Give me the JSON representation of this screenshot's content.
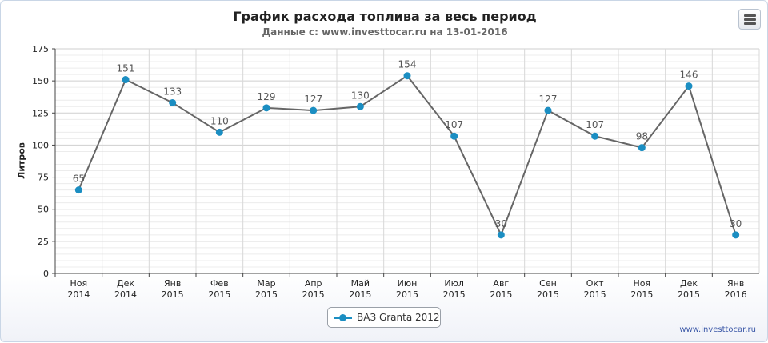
{
  "chart_data": {
    "type": "line",
    "title": "График расхода топлива за весь период",
    "subtitle": "Данные с: www.investtocar.ru на 13-01-2016",
    "ylabel": "Литров",
    "ylim": [
      0,
      175
    ],
    "yticks": [
      0,
      25,
      50,
      75,
      100,
      125,
      150,
      175
    ],
    "categories": [
      [
        "Ноя",
        "2014"
      ],
      [
        "Дек",
        "2014"
      ],
      [
        "Янв",
        "2015"
      ],
      [
        "Фев",
        "2015"
      ],
      [
        "Мар",
        "2015"
      ],
      [
        "Апр",
        "2015"
      ],
      [
        "Май",
        "2015"
      ],
      [
        "Июн",
        "2015"
      ],
      [
        "Июл",
        "2015"
      ],
      [
        "Авг",
        "2015"
      ],
      [
        "Сен",
        "2015"
      ],
      [
        "Окт",
        "2015"
      ],
      [
        "Ноя",
        "2015"
      ],
      [
        "Дек",
        "2015"
      ],
      [
        "Янв",
        "2016"
      ]
    ],
    "series": [
      {
        "name": "ВАЗ Granta 2012",
        "values": [
          65,
          151,
          133,
          110,
          129,
          127,
          130,
          154,
          107,
          30,
          127,
          107,
          98,
          146,
          30
        ]
      }
    ],
    "grid": true,
    "legend": "bottom-center",
    "colors": {
      "line": "#666666",
      "marker": "#1b8ec2"
    }
  },
  "credit": "www.investtocar.ru",
  "menu_icon": "hamburger-menu-icon"
}
